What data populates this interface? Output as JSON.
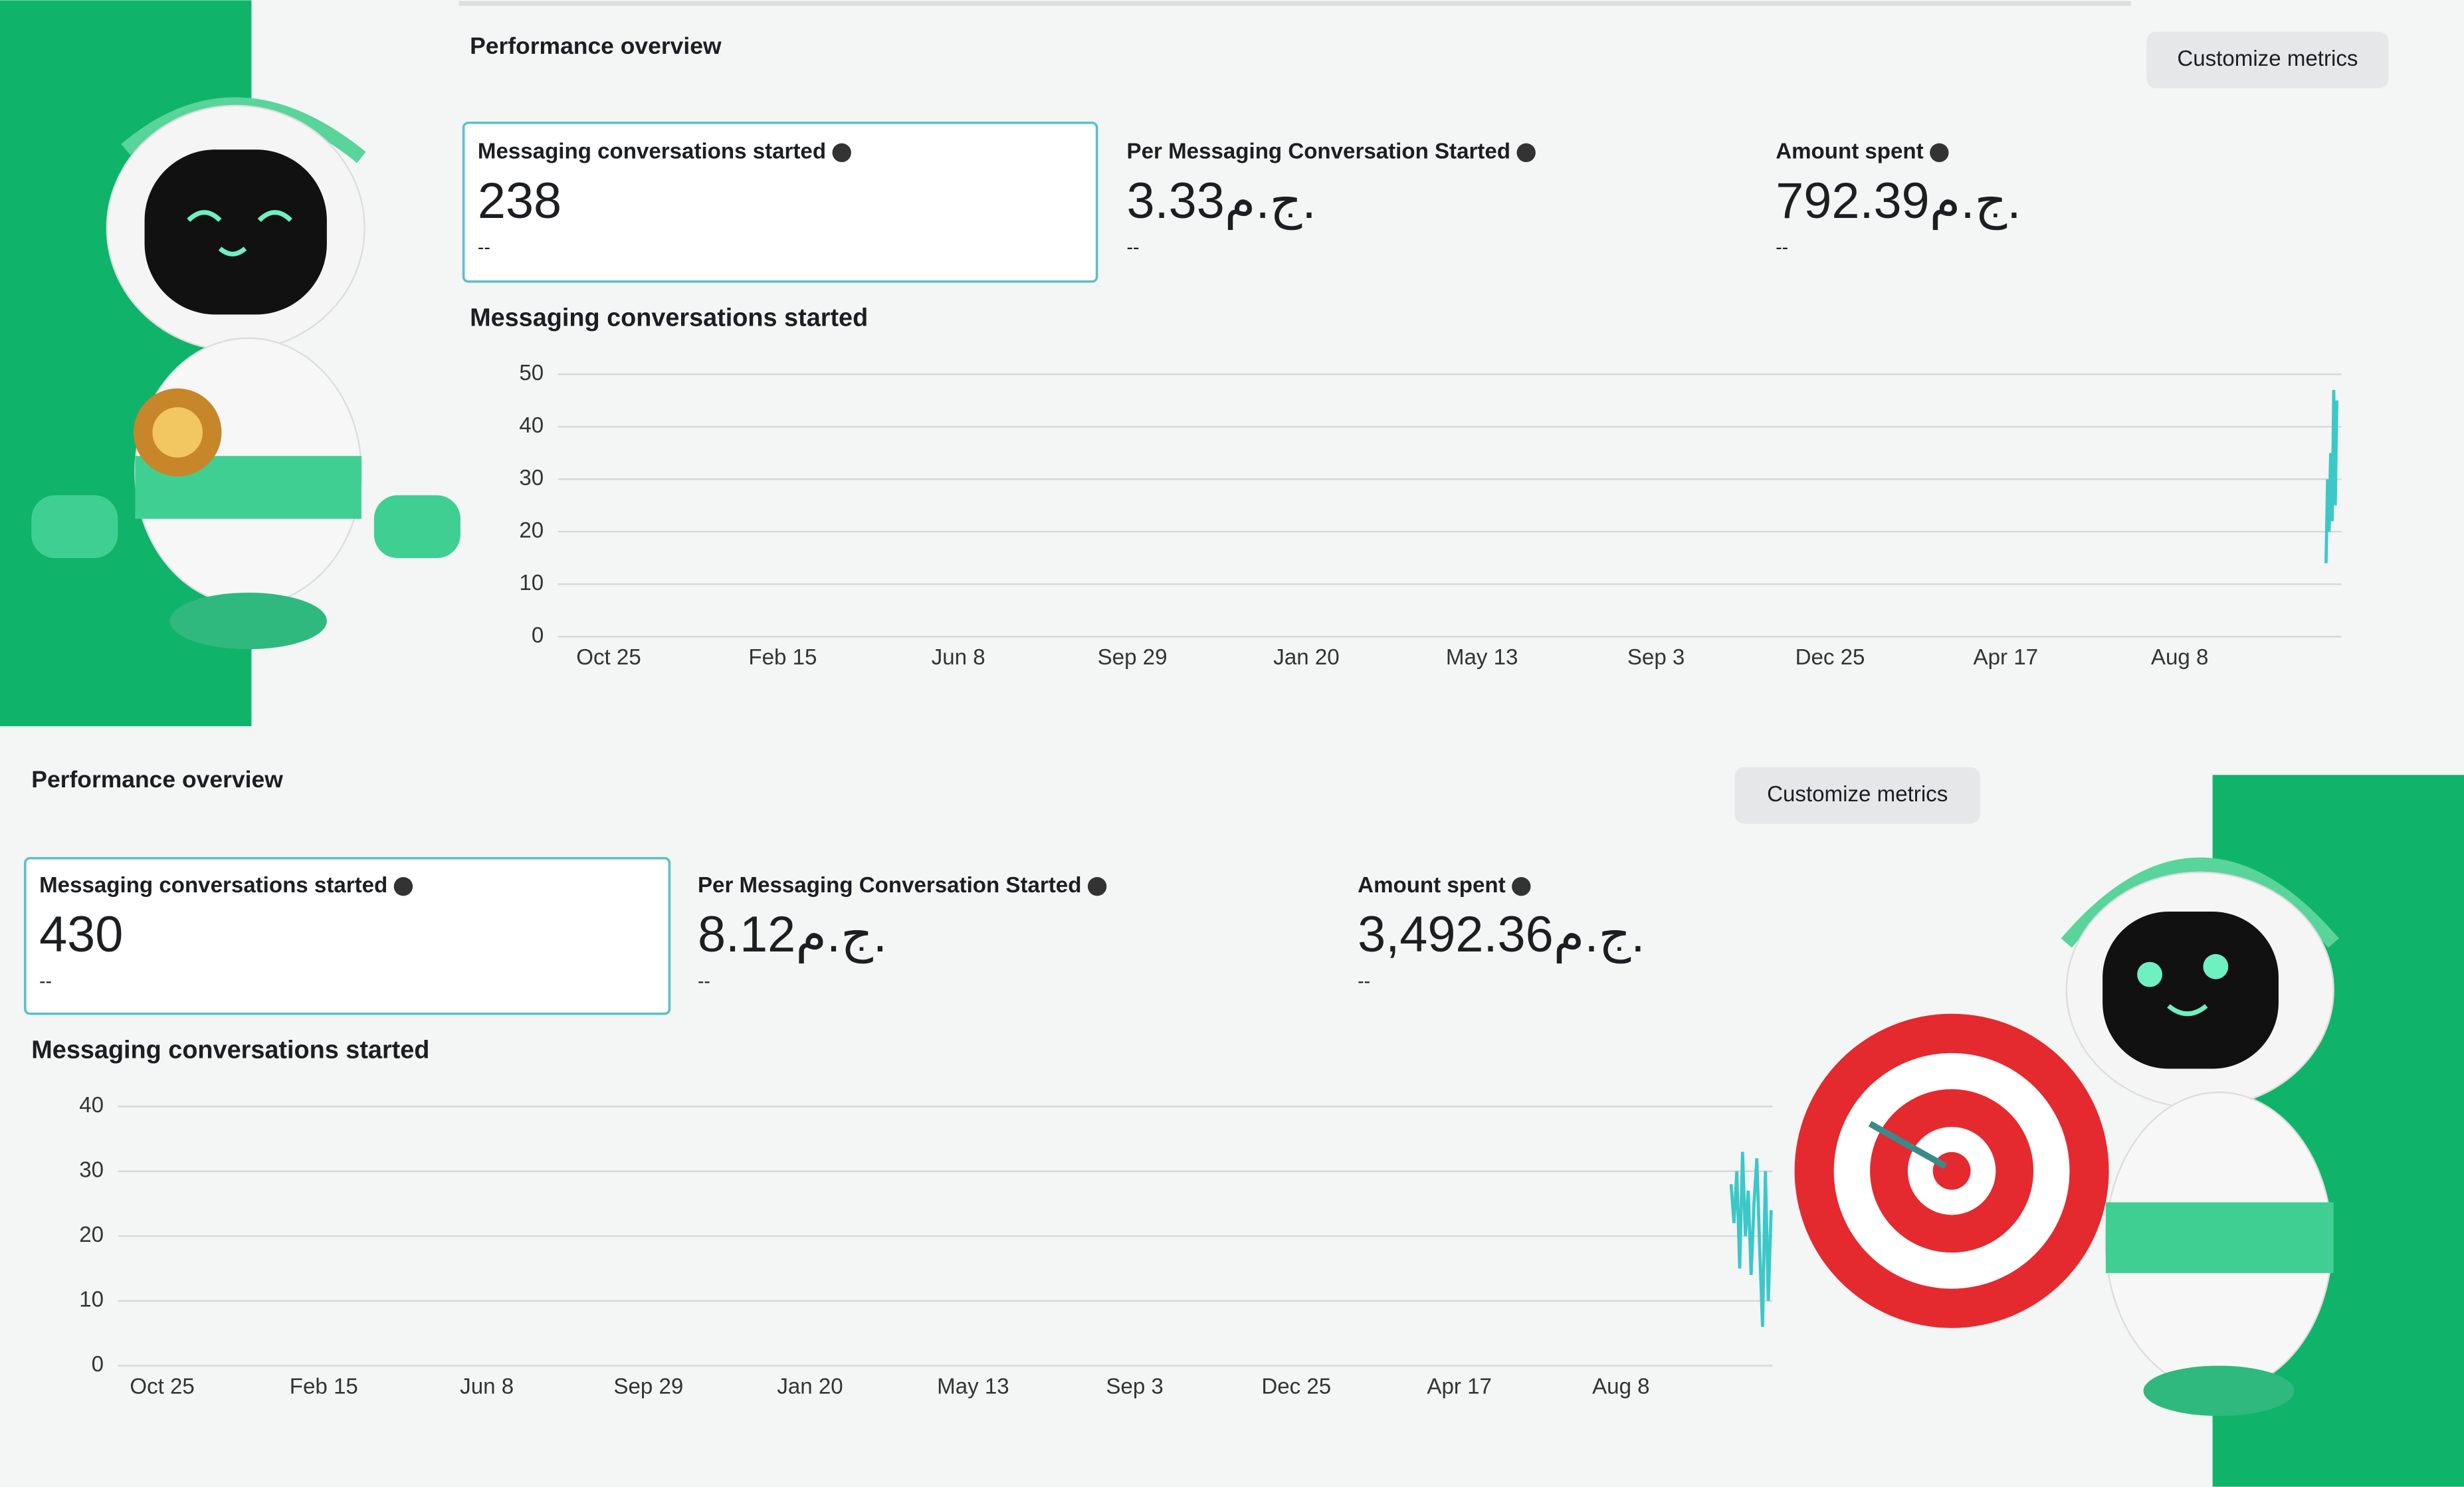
{
  "panels": [
    {
      "title": "Performance overview",
      "button": "Customize metrics",
      "metrics": [
        {
          "label": "Messaging conversations started",
          "value": "238",
          "change": "--"
        },
        {
          "label": "Per Messaging Conversation Started",
          "value": "3.33ج.م.",
          "change": "--"
        },
        {
          "label": "Amount spent",
          "value": "792.39ج.م.",
          "change": "--"
        }
      ],
      "chart_data": {
        "type": "line",
        "title": "Messaging conversations started",
        "x": [
          1115,
          1116,
          1117,
          1118,
          1119,
          1120,
          1121,
          1122
        ],
        "series": [
          {
            "color": "#3cc8c8",
            "values": [
              14,
              30,
              20,
              35,
              22,
              47,
              25,
              45
            ]
          }
        ],
        "xlim": [
          -33,
          1125
        ],
        "ylim": [
          0,
          50
        ],
        "yticks": [
          0,
          10,
          20,
          30,
          40,
          50
        ],
        "xticks": [
          {
            "value": 0,
            "label": "Oct 25"
          },
          {
            "value": 113,
            "label": "Feb 15"
          },
          {
            "value": 227,
            "label": "Jun 8"
          },
          {
            "value": 340,
            "label": "Sep 29"
          },
          {
            "value": 453,
            "label": "Jan 20"
          },
          {
            "value": 567,
            "label": "May 13"
          },
          {
            "value": 680,
            "label": "Sep 3"
          },
          {
            "value": 793,
            "label": "Dec 25"
          },
          {
            "value": 907,
            "label": "Apr 17"
          },
          {
            "value": 1020,
            "label": "Aug 8"
          }
        ],
        "grid": true
      }
    },
    {
      "title": "Performance overview",
      "button": "Customize metrics",
      "metrics": [
        {
          "label": "Messaging conversations started",
          "value": "430",
          "change": "--"
        },
        {
          "label": "Per Messaging Conversation Started",
          "value": "8.12ج.م.",
          "change": "--"
        },
        {
          "label": "Amount spent",
          "value": "3,492.36ج.م.",
          "change": "--"
        }
      ],
      "chart_data": {
        "type": "line",
        "title": "Messaging conversations started",
        "x": [
          1097,
          1099,
          1101,
          1103,
          1105,
          1107,
          1109,
          1111,
          1113,
          1115,
          1117,
          1119,
          1121,
          1123,
          1125
        ],
        "series": [
          {
            "color": "#3cc8c8",
            "values": [
              28,
              22,
              30,
              15,
              33,
              20,
              27,
              14,
              25,
              32,
              18,
              6,
              30,
              10,
              24
            ]
          }
        ],
        "xlim": [
          -31,
          1126
        ],
        "ylim": [
          0,
          40
        ],
        "yticks": [
          0,
          10,
          20,
          30,
          40
        ],
        "xticks": [
          {
            "value": 0,
            "label": "Oct 25"
          },
          {
            "value": 113,
            "label": "Feb 15"
          },
          {
            "value": 227,
            "label": "Jun 8"
          },
          {
            "value": 340,
            "label": "Sep 29"
          },
          {
            "value": 453,
            "label": "Jan 20"
          },
          {
            "value": 567,
            "label": "May 13"
          },
          {
            "value": 680,
            "label": "Sep 3"
          },
          {
            "value": 793,
            "label": "Dec 25"
          },
          {
            "value": 907,
            "label": "Apr 17"
          },
          {
            "value": 1020,
            "label": "Aug 8"
          }
        ],
        "grid": true
      }
    }
  ]
}
